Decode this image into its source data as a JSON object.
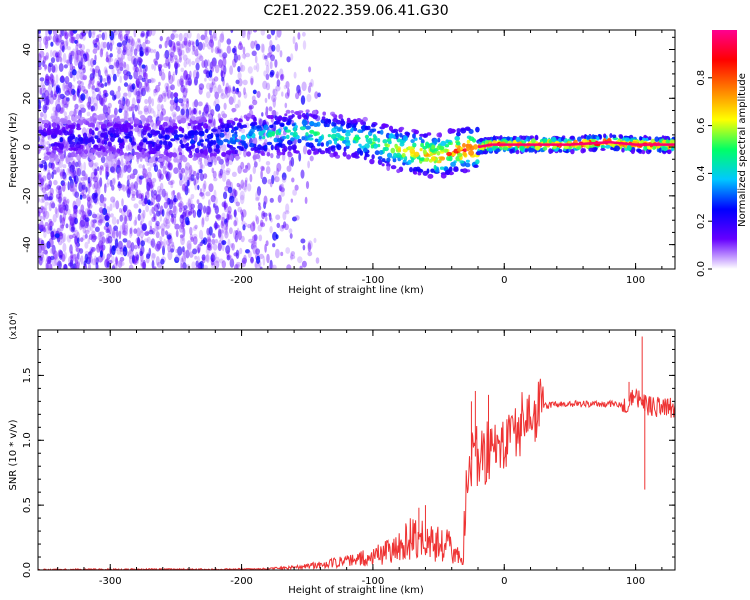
{
  "title": "C2E1.2022.359.06.41.G30",
  "chart_data": [
    {
      "type": "heatmap",
      "title": "C2E1.2022.359.06.41.G30",
      "xlabel": "Height of straight line (km)",
      "ylabel": "Frequency (Hz)",
      "xlim": [
        -355,
        130
      ],
      "ylim": [
        -50,
        48
      ],
      "x_ticks": [
        -300,
        -200,
        -100,
        0,
        100
      ],
      "y_ticks": [
        -40,
        -20,
        0,
        20,
        40
      ],
      "colorbar": {
        "label": "Normalized spectral amplitude",
        "range": [
          0.0,
          1.0
        ],
        "ticks": [
          "0.0",
          "0.2",
          "0.4",
          "0.6",
          "0.8"
        ],
        "colormap": [
          "#ffffff",
          "#6600ff",
          "#0000ff",
          "#00c8ff",
          "#00ff66",
          "#ffff00",
          "#ff8000",
          "#ff0000",
          "#ff0090"
        ]
      },
      "ridge": {
        "x": [
          -355,
          -300,
          -250,
          -210,
          -180,
          -150,
          -120,
          -100,
          -80,
          -60,
          -50,
          -40,
          -30,
          -20,
          -10,
          0,
          20,
          50,
          80,
          100,
          130
        ],
        "frequency": [
          3,
          4,
          3,
          4,
          5,
          6,
          4,
          2,
          -1,
          -3,
          -4,
          -2,
          -1,
          0,
          1,
          1,
          1,
          1,
          2,
          1,
          1
        ],
        "peak_amplitude": [
          0.25,
          0.25,
          0.3,
          0.4,
          0.5,
          0.55,
          0.55,
          0.6,
          0.7,
          0.8,
          0.85,
          0.9,
          0.95,
          1.0,
          1.0,
          1.0,
          1.0,
          1.0,
          1.0,
          1.0,
          1.0
        ]
      }
    },
    {
      "type": "line",
      "xlabel": "Height of straight line (km)",
      "ylabel": "SNR (10 * v/v)",
      "y_scale_label": "(x10⁴)",
      "xlim": [
        -355,
        130
      ],
      "ylim": [
        0.0,
        1.85
      ],
      "x_ticks": [
        -300,
        -200,
        -100,
        0,
        100
      ],
      "y_ticks": [
        "0.0",
        "0.5",
        "1.0",
        "1.5"
      ],
      "color": "#ee3333",
      "x": [
        -355,
        -330,
        -300,
        -270,
        -240,
        -210,
        -180,
        -160,
        -140,
        -120,
        -100,
        -90,
        -80,
        -70,
        -60,
        -50,
        -40,
        -32,
        -28,
        -24,
        -20,
        -15,
        -10,
        -5,
        0,
        5,
        10,
        20,
        30,
        40,
        50,
        60,
        70,
        80,
        90,
        95,
        100,
        105,
        108,
        112,
        120,
        130
      ],
      "y": [
        0.003,
        0.004,
        0.004,
        0.005,
        0.005,
        0.005,
        0.01,
        0.02,
        0.04,
        0.07,
        0.1,
        0.15,
        0.2,
        0.25,
        0.22,
        0.2,
        0.18,
        0.05,
        0.7,
        0.9,
        0.85,
        0.9,
        0.95,
        0.98,
        1.0,
        1.05,
        1.1,
        1.2,
        1.26,
        1.28,
        1.28,
        1.28,
        1.28,
        1.28,
        1.28,
        1.3,
        1.32,
        1.3,
        1.28,
        1.26,
        1.26,
        1.25
      ],
      "spikes": [
        {
          "x": -65,
          "y": 0.48
        },
        {
          "x": -60,
          "y": 0.5
        },
        {
          "x": -25,
          "y": 1.3
        },
        {
          "x": -22,
          "y": 1.38
        },
        {
          "x": -12,
          "y": 1.35
        },
        {
          "x": 105,
          "y": 1.8
        },
        {
          "x": 107,
          "y": 0.62
        },
        {
          "x": 95,
          "y": 1.45
        }
      ]
    }
  ]
}
